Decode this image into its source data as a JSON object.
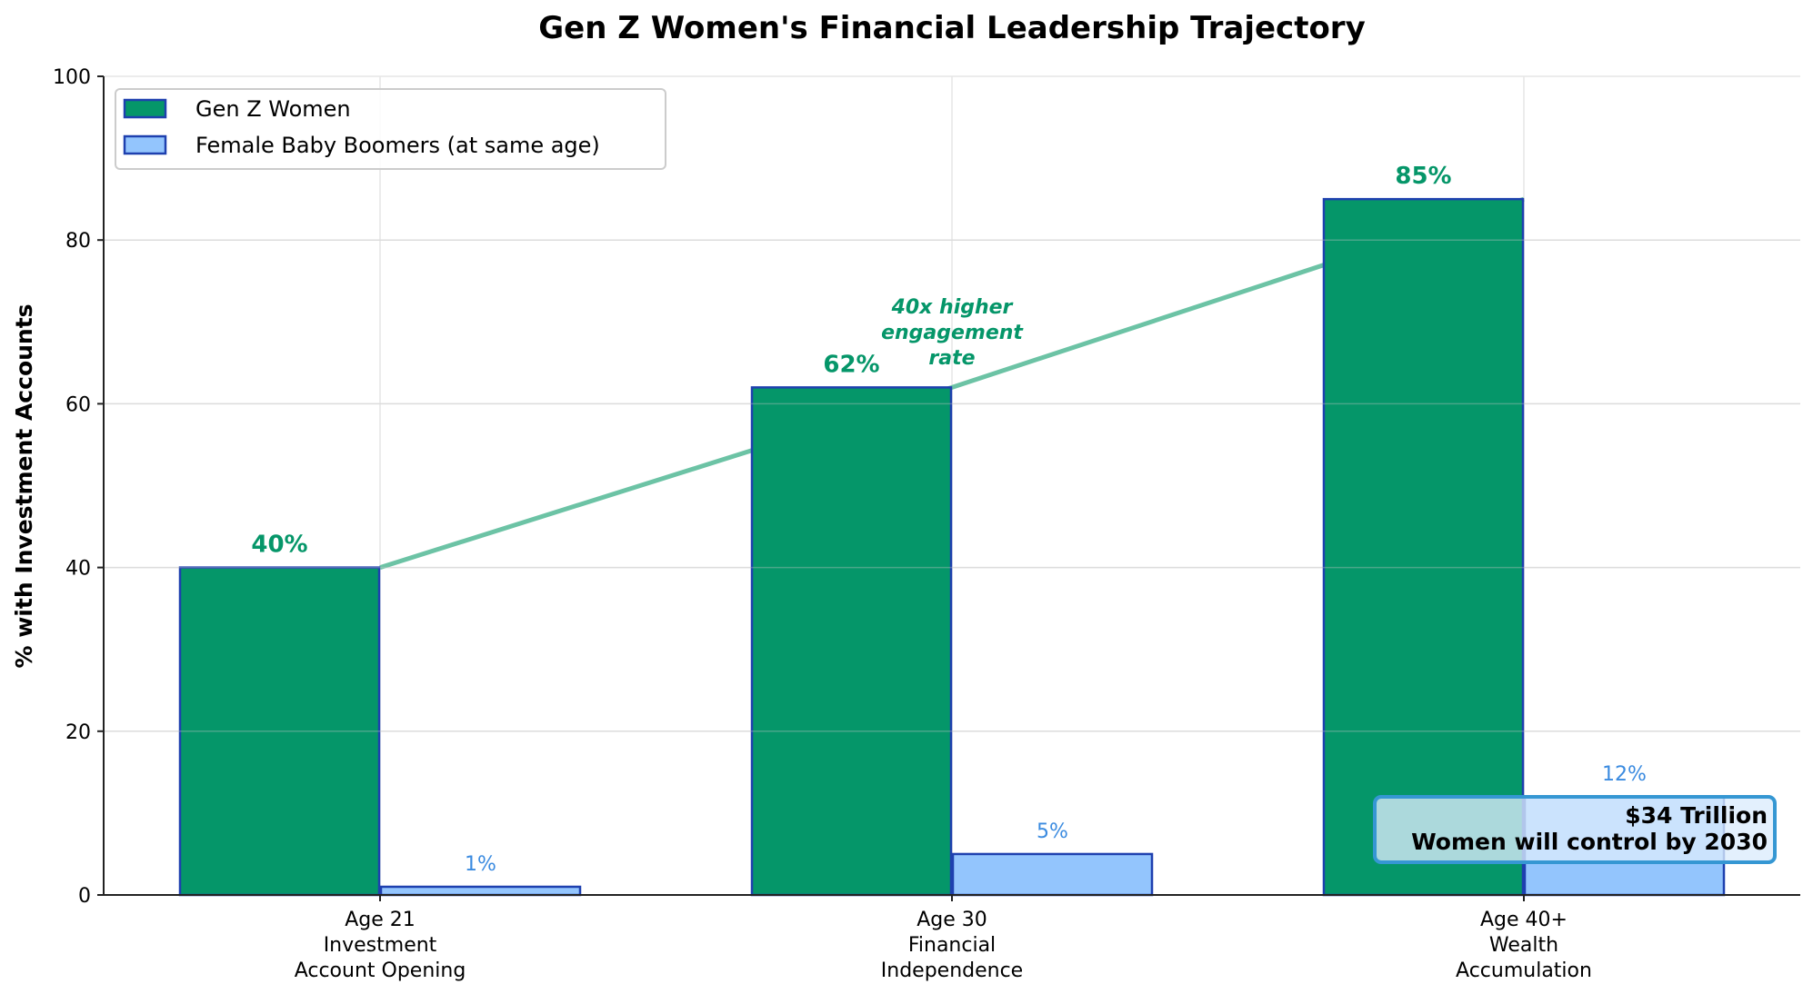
{
  "chart_data": {
    "type": "bar",
    "title": "Gen Z Women's Financial Leadership Trajectory",
    "xlabel": "",
    "ylabel": "% with Investment Accounts",
    "ylim": [
      0,
      100
    ],
    "yticks": [
      0,
      20,
      40,
      60,
      80,
      100
    ],
    "grid": true,
    "legend_position": "upper left",
    "categories": [
      [
        "Age 21",
        "Investment",
        "Account Opening"
      ],
      [
        "Age 30",
        "Financial",
        "Independence"
      ],
      [
        "Age 40+",
        "Wealth",
        "Accumulation"
      ]
    ],
    "series": [
      {
        "name": "Gen Z Women",
        "values": [
          40,
          62,
          85
        ],
        "labels": [
          "40%",
          "62%",
          "85%"
        ],
        "color": "#059669",
        "edge": "#1e40af"
      },
      {
        "name": "Female Baby Boomers (at same age)",
        "values": [
          1,
          5,
          12
        ],
        "labels": [
          "1%",
          "5%",
          "12%"
        ],
        "color": "#93c5fd",
        "edge": "#1e40af",
        "label_color": "#3b8be0"
      }
    ],
    "trend_line": {
      "series": "Gen Z Women",
      "color": "#6cc3a5"
    },
    "annotations": [
      {
        "text": [
          "40x higher",
          "engagement",
          "rate"
        ],
        "color": "#059669"
      },
      {
        "text": [
          "$34 Trillion",
          "Women will control by 2030"
        ]
      }
    ]
  }
}
